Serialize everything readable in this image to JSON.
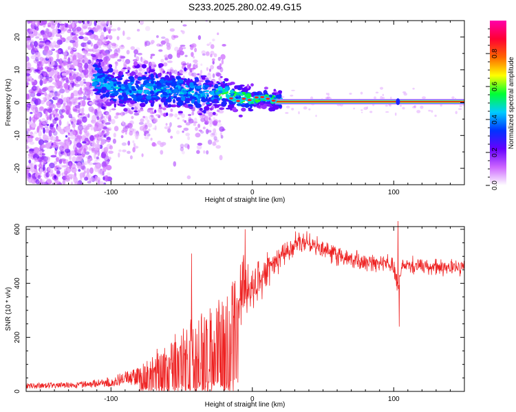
{
  "figure_title": "S233.2025.280.02.49.G15",
  "colors": {
    "snr_line": "#ee2222",
    "carrier": "#dd1111",
    "colorbar": [
      "#ffffff",
      "#cc66ff",
      "#6600ff",
      "#0033ff",
      "#00ccff",
      "#00ff33",
      "#ffff00",
      "#ff6600",
      "#ff0033",
      "#ff00aa"
    ]
  },
  "chart_data": [
    {
      "type": "heatmap",
      "title": "S233.2025.280.02.49.G15",
      "xlabel": "Height of straight line (km)",
      "ylabel": "Frequency (Hz)",
      "xlim": [
        -160,
        150
      ],
      "ylim": [
        -25,
        25
      ],
      "x_ticks": [
        -100,
        0,
        100
      ],
      "x_tick_labels": [
        "-100",
        "0",
        "100"
      ],
      "y_ticks": [
        -20,
        -10,
        0,
        10,
        20
      ],
      "y_tick_labels": [
        "-20",
        "-10",
        "0",
        "10",
        "20"
      ],
      "colorbar": {
        "label": "Normalized spectral amplitude",
        "range": [
          0,
          1
        ],
        "ticks": [
          0.0,
          0.2,
          0.4,
          0.6,
          0.8
        ],
        "tick_labels": [
          "0.0",
          "0.2",
          "0.4",
          "0.6",
          "0.8"
        ]
      },
      "ridge": {
        "description_points_x_km": [
          -110,
          -100,
          -90,
          -80,
          -70,
          -60,
          -50,
          -40,
          -30,
          -20,
          -10,
          0,
          10,
          20,
          50,
          100,
          150
        ],
        "description_points_freq_hz": [
          7,
          5,
          4,
          4,
          4.5,
          4,
          3.5,
          3,
          2.5,
          3,
          1.5,
          1,
          1.5,
          0.5,
          0.3,
          0.3,
          0.3
        ]
      }
    },
    {
      "type": "line",
      "xlabel": "Height of straight line (km)",
      "ylabel": "SNR (10 * v/v)",
      "xlim": [
        -160,
        150
      ],
      "ylim": [
        0,
        610
      ],
      "x_ticks": [
        -100,
        0,
        100
      ],
      "x_tick_labels": [
        "-100",
        "0",
        "100"
      ],
      "y_ticks": [
        0,
        200,
        400,
        600
      ],
      "y_tick_labels": [
        "0",
        "200",
        "400",
        "600"
      ],
      "series": [
        {
          "name": "SNR",
          "trend_x_km": [
            -160,
            -120,
            -100,
            -80,
            -60,
            -40,
            -30,
            -20,
            -15,
            -10,
            0,
            10,
            20,
            30,
            40,
            50,
            60,
            80,
            100,
            103,
            106,
            120,
            150
          ],
          "trend_y": [
            20,
            25,
            35,
            60,
            120,
            170,
            190,
            210,
            250,
            320,
            380,
            440,
            500,
            540,
            550,
            530,
            500,
            480,
            470,
            380,
            470,
            460,
            460
          ],
          "spread": [
            10,
            12,
            18,
            35,
            80,
            110,
            130,
            140,
            150,
            120,
            70,
            50,
            40,
            30,
            30,
            28,
            28,
            25,
            25,
            25,
            25,
            25,
            25
          ],
          "spikes": [
            {
              "x": -43,
              "y": 510
            },
            {
              "x": -5,
              "y": 600
            },
            {
              "x": 103,
              "y": 640
            },
            {
              "x": 104,
              "y": 240
            }
          ]
        }
      ]
    }
  ]
}
